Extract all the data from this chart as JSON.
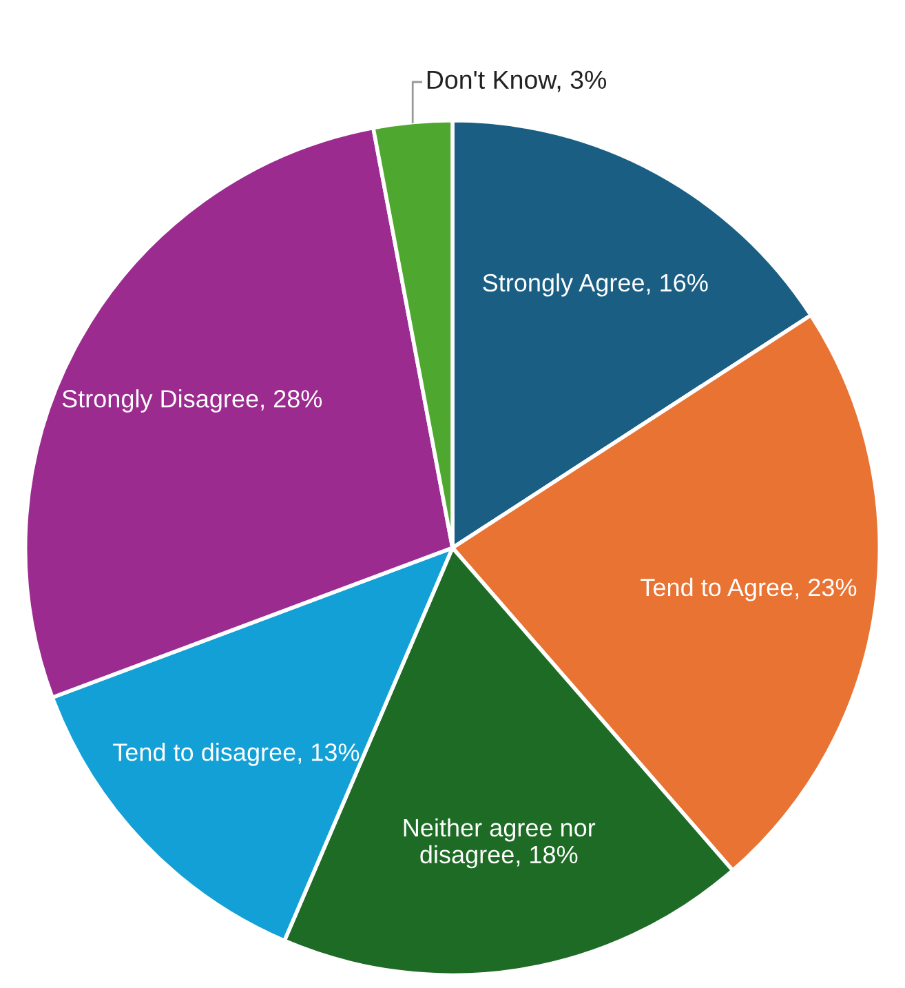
{
  "chart_data": {
    "type": "pie",
    "categories": [
      "Strongly Agree",
      "Tend to Agree",
      "Neither agree nor disagree",
      "Tend to disagree",
      "Strongly Disagree",
      "Don't Know"
    ],
    "values": [
      16,
      23,
      18,
      13,
      28,
      3
    ],
    "colors": [
      "#1a5e84",
      "#e87333",
      "#1e6b26",
      "#12a0d7",
      "#9b2b8f",
      "#4ea72e"
    ],
    "value_labels": [
      "16%",
      "23%",
      "18%",
      "13%",
      "28%",
      "3%"
    ]
  }
}
